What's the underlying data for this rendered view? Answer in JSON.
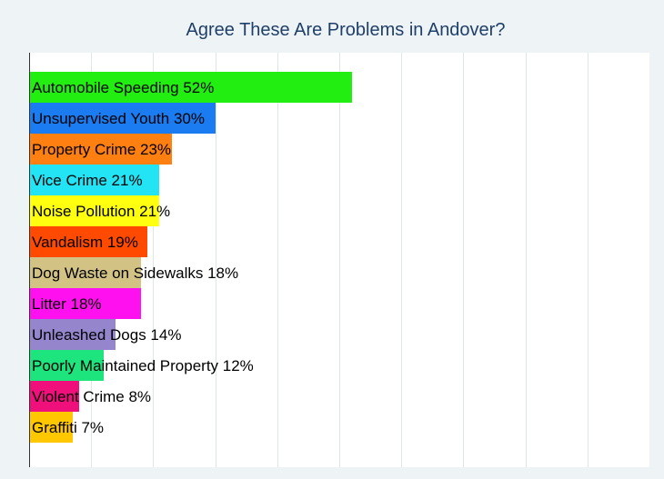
{
  "chart_data": {
    "type": "bar",
    "orientation": "horizontal",
    "title": "Agree These Are Problems in Andover?",
    "xlim": [
      0,
      100
    ],
    "grid": true,
    "categories": [
      "Automobile Speeding",
      "Unsupervised Youth",
      "Property Crime",
      "Vice Crime",
      "Noise Pollution",
      "Vandalism",
      "Dog Waste on Sidewalks",
      "Litter",
      "Unleashed Dogs",
      "Poorly Maintained Property",
      "Violent Crime",
      "Graffiti"
    ],
    "values": [
      52,
      30,
      23,
      21,
      21,
      19,
      18,
      18,
      14,
      12,
      8,
      7
    ],
    "labels": [
      "Automobile Speeding 52%",
      "Unsupervised Youth 30%",
      "Property Crime 23%",
      "Vice Crime 21%",
      "Noise Pollution 21%",
      "Vandalism 19%",
      "Dog Waste on Sidewalks 18%",
      "Litter 18%",
      "Unleashed Dogs 14%",
      "Poorly Maintained Property 12%",
      "Violent Crime 8%",
      "Graffiti 7%"
    ],
    "colors": [
      "#22ee11",
      "#1a7cf0",
      "#ff8010",
      "#22e4f4",
      "#ffff10",
      "#ff4a00",
      "#d2c385",
      "#ff10ee",
      "#9585cc",
      "#1ee47e",
      "#f0107c",
      "#ffc700"
    ]
  }
}
